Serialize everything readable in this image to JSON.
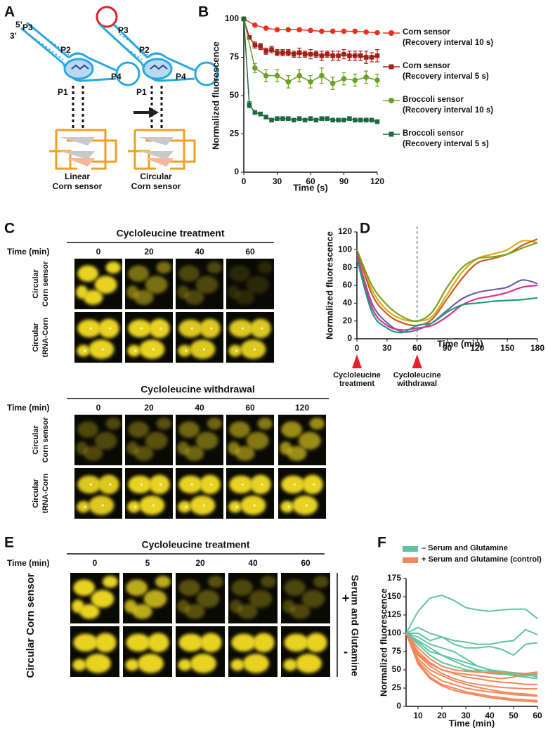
{
  "panel_labels": [
    "A",
    "B",
    "C",
    "D",
    "E",
    "F"
  ],
  "diagram": {
    "five_prime": "5’",
    "three_prime": "3’",
    "p3": "P3",
    "p2": "P2",
    "p4": "P4",
    "p1": "P1",
    "linear_caption": "Linear\nCorn sensor",
    "circular_caption": "Circular\nCorn sensor"
  },
  "chart_data": [
    {
      "type": "line",
      "ylabel": "Normalized fluorescence",
      "xlabel": "Time (s)",
      "xlim": [
        0,
        120
      ],
      "ylim": [
        0,
        100
      ],
      "xticks": [
        0,
        30,
        60,
        90,
        120
      ],
      "yticks": [
        0,
        25,
        50,
        75,
        100
      ],
      "legend": "right",
      "series": [
        {
          "name": "Corn sensor\n(Recovery interval 10 s)",
          "color": "#e8301e",
          "marker": "circle",
          "x": [
            0,
            10,
            20,
            30,
            40,
            50,
            60,
            70,
            80,
            90,
            100,
            110,
            120
          ],
          "values": [
            100,
            96,
            94,
            93,
            93,
            93,
            92.5,
            92,
            92,
            92,
            92,
            91.5,
            91
          ]
        },
        {
          "name": "Corn sensor\n(Recovery interval 5 s)",
          "color": "#a3201a",
          "marker": "square",
          "x": [
            0,
            5,
            10,
            15,
            20,
            25,
            30,
            35,
            40,
            45,
            50,
            55,
            60,
            65,
            70,
            75,
            80,
            85,
            90,
            95,
            100,
            105,
            110,
            115,
            120
          ],
          "values": [
            100,
            88,
            83,
            82,
            79,
            80,
            78,
            78,
            78,
            77,
            78,
            77,
            77,
            77,
            76,
            77,
            76,
            76,
            77,
            76,
            76,
            76,
            75,
            75,
            76
          ],
          "errors": [
            0,
            1,
            2,
            2,
            2,
            2,
            2,
            2,
            2,
            2,
            3,
            2,
            3,
            2,
            3,
            2,
            3,
            3,
            3,
            3,
            3,
            3,
            4,
            3,
            4
          ]
        },
        {
          "name": "Broccoli sensor\n(Recovery interval 10 s)",
          "color": "#6aa121",
          "marker": "circle",
          "x": [
            0,
            10,
            20,
            30,
            40,
            50,
            60,
            70,
            80,
            90,
            100,
            110,
            120
          ],
          "values": [
            100,
            68,
            63,
            63,
            59,
            63,
            59,
            63,
            58,
            61,
            60,
            62,
            60
          ],
          "errors": [
            0,
            3,
            4,
            4,
            4,
            4,
            4,
            5,
            4,
            4,
            4,
            4,
            4
          ]
        },
        {
          "name": "Broccoli sensor\n(Recovery interval 5 s)",
          "color": "#1c6b3f",
          "marker": "square",
          "x": [
            0,
            5,
            10,
            15,
            20,
            25,
            30,
            35,
            40,
            45,
            50,
            55,
            60,
            65,
            70,
            75,
            80,
            85,
            90,
            95,
            100,
            105,
            110,
            115,
            120
          ],
          "values": [
            100,
            44,
            39,
            38,
            36,
            34,
            35,
            35,
            35,
            34,
            35,
            34,
            35,
            34,
            35,
            35,
            34,
            34,
            34,
            35,
            34,
            34,
            34,
            34,
            33
          ],
          "errors": [
            0,
            2,
            1,
            1,
            1,
            1,
            1,
            1,
            1,
            1,
            1,
            1,
            1,
            1,
            1,
            1,
            1,
            1,
            1,
            1,
            1,
            1,
            1,
            1,
            1
          ]
        }
      ]
    },
    {
      "type": "line",
      "smooth": true,
      "ylabel": "Normalized fluorescence",
      "xlabel": "Time (min)",
      "xlim": [
        0,
        180
      ],
      "ylim": [
        0,
        120
      ],
      "xticks": [
        0,
        30,
        60,
        90,
        120,
        150,
        180
      ],
      "yticks": [
        0,
        20,
        40,
        60,
        80,
        100,
        120
      ],
      "vlines": [
        60
      ],
      "annotations": [
        {
          "text": "Cycloleucine\ntreatment",
          "x": 0
        },
        {
          "text": "Cycloleucine\nwithdrawal",
          "x": 60
        }
      ],
      "x": [
        0,
        15,
        30,
        45,
        60,
        75,
        90,
        105,
        120,
        135,
        150,
        165,
        180
      ],
      "series": [
        {
          "color": "#e3a51c",
          "values": [
            100,
            55,
            32,
            22,
            20,
            25,
            50,
            75,
            90,
            95,
            100,
            110,
            108
          ]
        },
        {
          "color": "#c5601f",
          "values": [
            100,
            50,
            28,
            18,
            15,
            22,
            45,
            68,
            85,
            90,
            95,
            105,
            112
          ]
        },
        {
          "color": "#78a51f",
          "values": [
            100,
            60,
            38,
            25,
            20,
            30,
            58,
            80,
            90,
            92,
            95,
            102,
            108
          ]
        },
        {
          "color": "#6f62a8",
          "values": [
            95,
            40,
            18,
            8,
            10,
            18,
            32,
            45,
            52,
            55,
            58,
            66,
            62
          ]
        },
        {
          "color": "#d9338c",
          "values": [
            95,
            35,
            15,
            10,
            12,
            15,
            25,
            38,
            45,
            48,
            52,
            58,
            60
          ]
        },
        {
          "color": "#1f9e7c",
          "values": [
            90,
            30,
            12,
            7,
            15,
            18,
            30,
            38,
            40,
            42,
            43,
            44,
            46
          ]
        }
      ]
    },
    {
      "type": "line",
      "ylabel": "Normalized fluorescence",
      "xlabel": "Time (min)",
      "xlim": [
        5,
        60
      ],
      "ylim": [
        0,
        175
      ],
      "xticks": [
        10,
        20,
        30,
        40,
        50,
        60
      ],
      "yticks": [
        0,
        25,
        50,
        75,
        100,
        125,
        150,
        175
      ],
      "legend": "top",
      "x": [
        5,
        10,
        15,
        20,
        25,
        30,
        35,
        40,
        45,
        50,
        55,
        60
      ],
      "series": [
        {
          "name": "– Serum and Glutamine",
          "color": "#5fc4a3",
          "lines": [
            [
              100,
              130,
              148,
              152,
              145,
              135,
              132,
              130,
              132,
              133,
              133,
              120
            ],
            [
              100,
              108,
              100,
              95,
              90,
              88,
              85,
              85,
              88,
              90,
              105,
              98
            ],
            [
              100,
              100,
              90,
              95,
              85,
              80,
              80,
              82,
              78,
              70,
              85,
              87
            ],
            [
              100,
              95,
              85,
              80,
              75,
              65,
              55,
              50,
              45,
              42,
              40,
              38
            ],
            [
              100,
              90,
              80,
              70,
              62,
              55,
              50,
              48,
              46,
              45,
              44,
              44
            ],
            [
              100,
              88,
              75,
              70,
              65,
              60,
              55,
              50,
              48,
              46,
              45,
              40
            ],
            [
              100,
              85,
              70,
              60,
              55,
              50,
              48,
              45,
              44,
              43,
              42,
              42
            ]
          ]
        },
        {
          "name": "+ Serum and Glutamine (control)",
          "color": "#f2875b",
          "lines": [
            [
              100,
              80,
              65,
              55,
              50,
              48,
              47,
              46,
              46,
              45,
              45,
              45
            ],
            [
              100,
              75,
              60,
              50,
              45,
              40,
              38,
              35,
              33,
              32,
              30,
              30
            ],
            [
              100,
              70,
              55,
              45,
              38,
              33,
              30,
              28,
              26,
              25,
              24,
              24
            ],
            [
              100,
              65,
              50,
              42,
              35,
              30,
              26,
              23,
              20,
              18,
              17,
              15
            ],
            [
              100,
              62,
              45,
              35,
              30,
              25,
              22,
              20,
              18,
              16,
              15,
              14
            ],
            [
              100,
              60,
              40,
              30,
              25,
              20,
              17,
              14,
              12,
              10,
              9,
              8
            ],
            [
              100,
              58,
              38,
              28,
              22,
              18,
              15,
              12,
              10,
              8,
              7,
              6
            ],
            [
              100,
              72,
              58,
              50,
              46,
              44,
              42,
              40,
              38,
              40,
              45,
              47
            ]
          ]
        }
      ]
    }
  ],
  "panel_c": {
    "treatment": {
      "title": "Cycloleucine treatment",
      "time_label": "Time (min)",
      "times": [
        0,
        20,
        40,
        60
      ],
      "rows": [
        "Circular\nCorn sensor",
        "Circular\ntRNA-Corn"
      ]
    },
    "withdrawal": {
      "title": "Cycloleucine withdrawal",
      "time_label": "Time (min)",
      "times": [
        0,
        20,
        40,
        60,
        120
      ],
      "rows": [
        "Circular\nCorn sensor",
        "Circular\ntRNA-Corn"
      ]
    }
  },
  "panel_e": {
    "title": "Cycloleucine treatment",
    "time_label": "Time (min)",
    "times": [
      0,
      5,
      20,
      40,
      60
    ],
    "row_label": "Circular Corn sensor",
    "condition": "Serum and Glutamine",
    "row_signs": [
      "+",
      "-"
    ]
  }
}
